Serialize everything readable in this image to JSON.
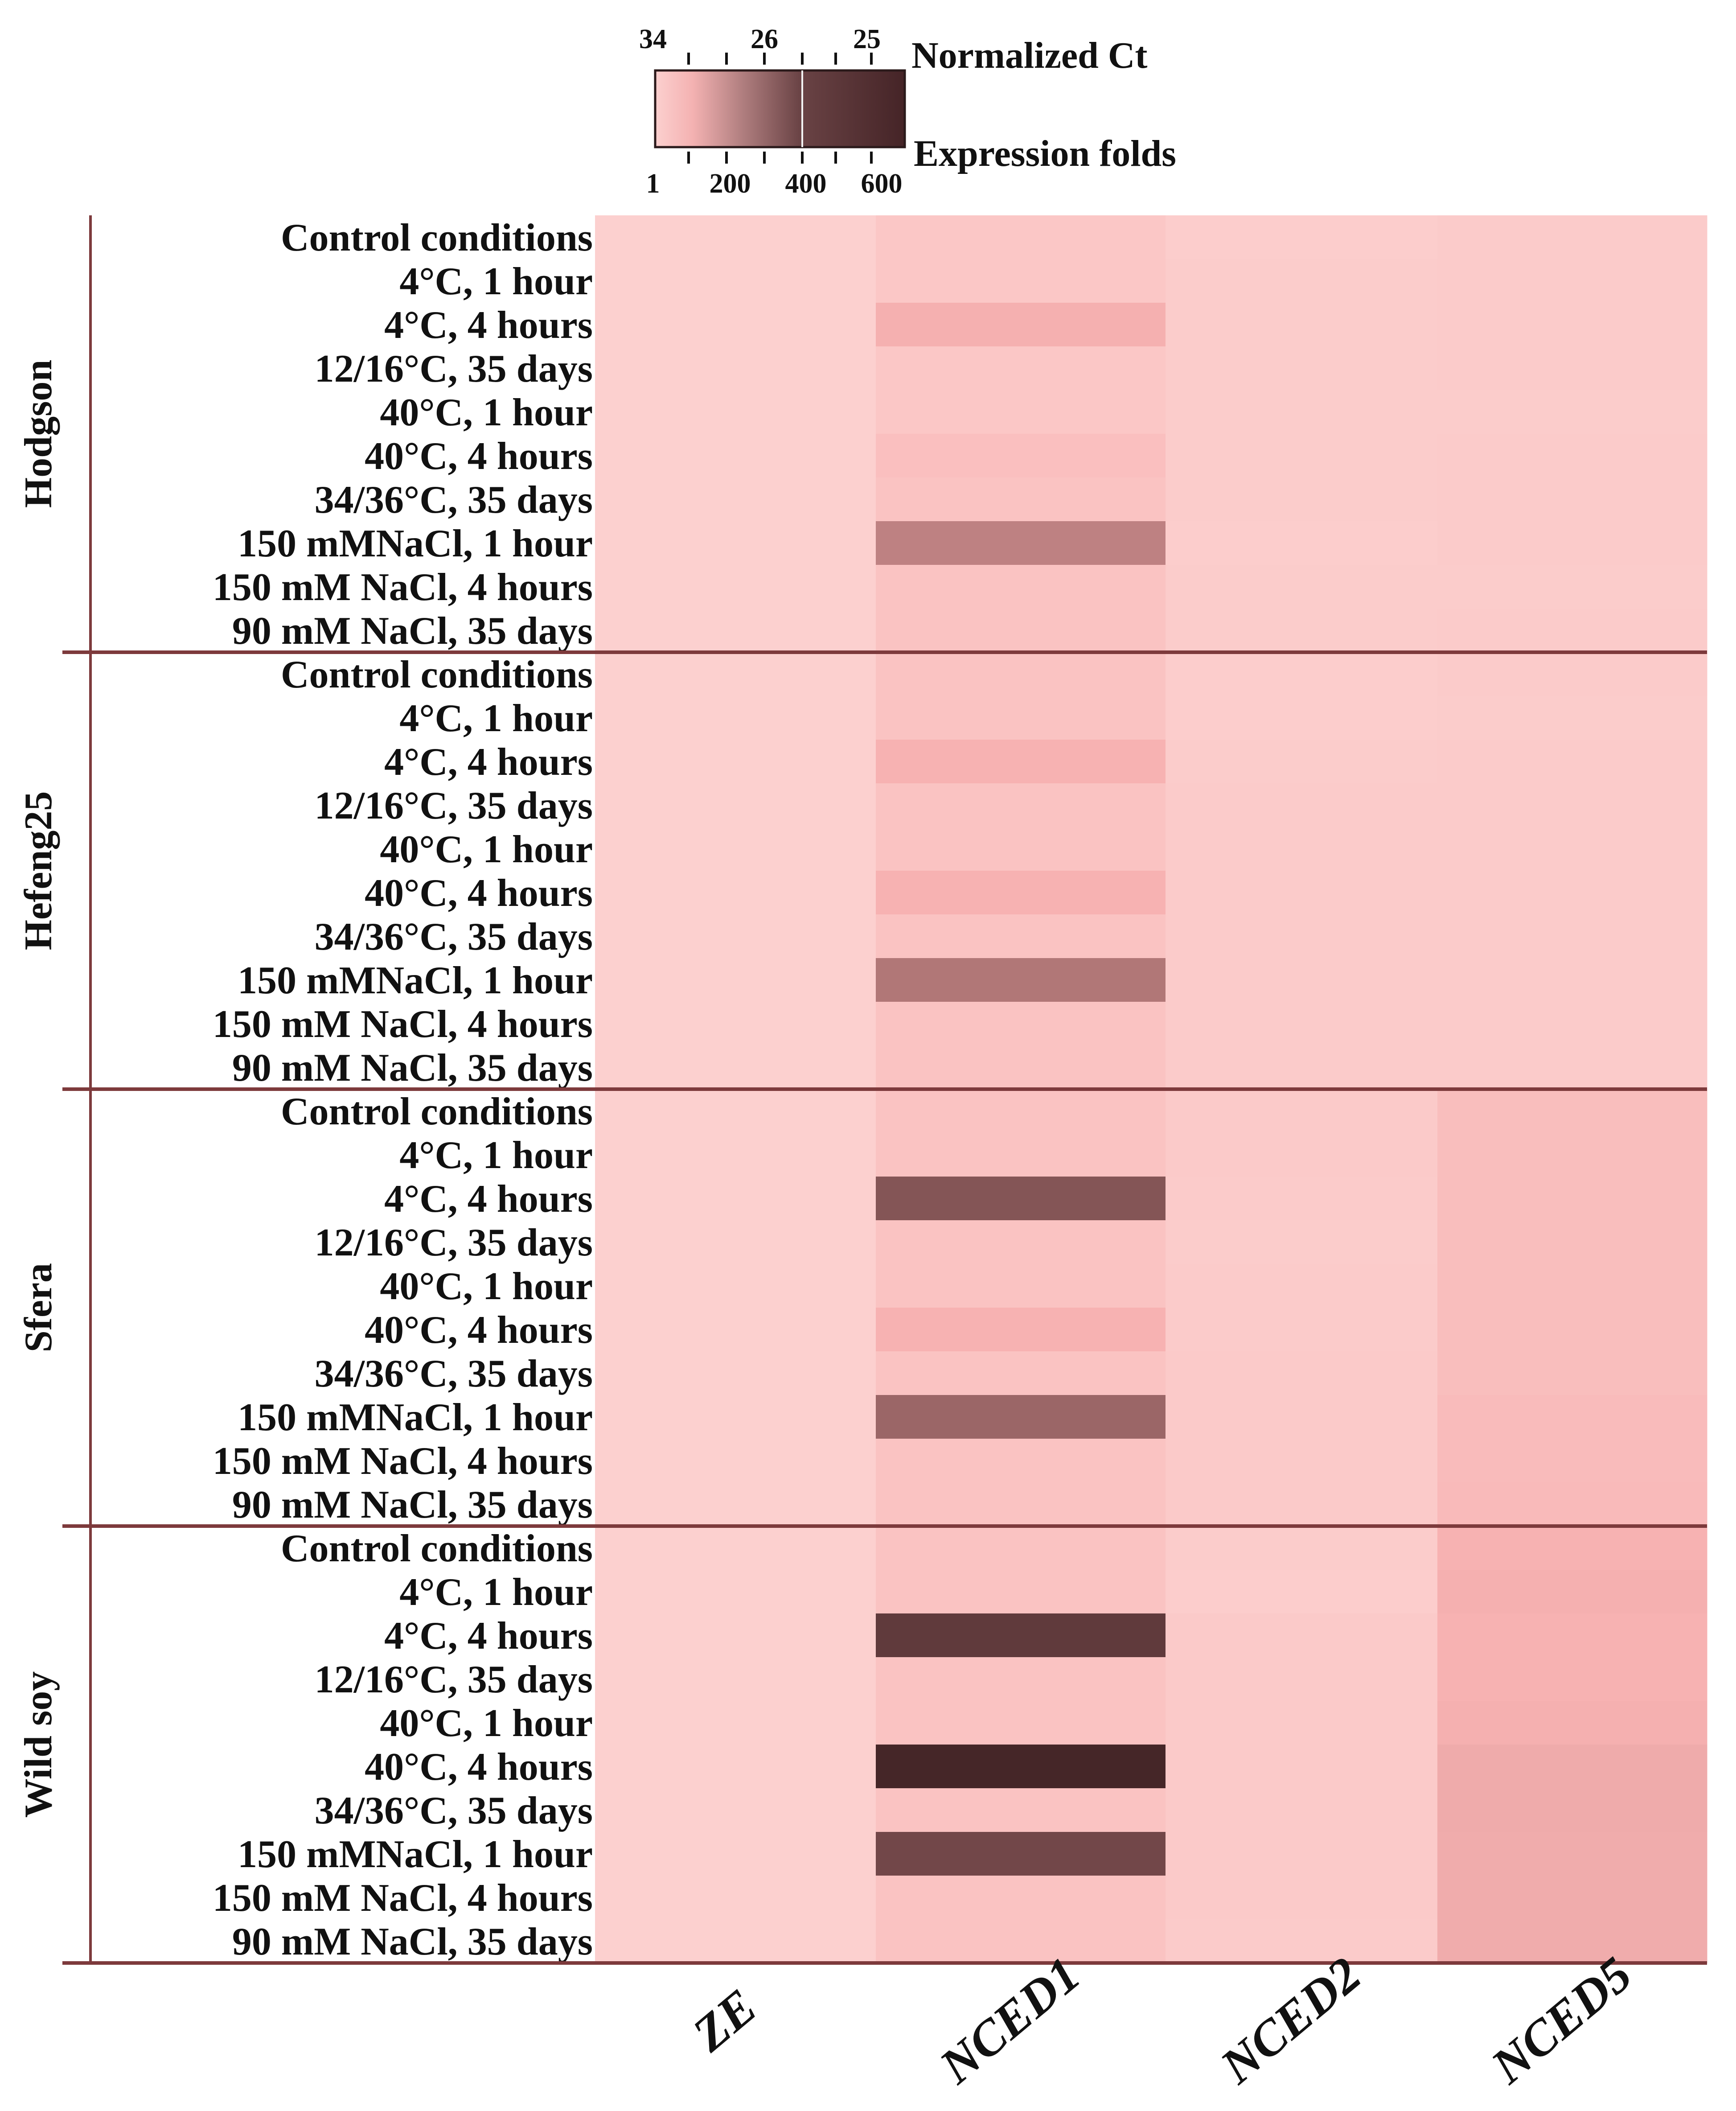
{
  "chart_data": {
    "type": "heatmap",
    "title": "",
    "columns": [
      "ZE",
      "NCED1",
      "NCED2",
      "NCED5"
    ],
    "rows": [
      "Control conditions",
      "4°C, 1 hour",
      "4°C, 4 hours",
      "12/16°C, 35 days",
      "40°C, 1 hour",
      "40°C, 4 hours",
      "34/36°C, 35 days",
      "150 mMNaCl, 1 hour",
      "150 mM NaCl, 4 hours",
      "90 mM NaCl, 35 days"
    ],
    "groups": [
      {
        "name": "Hodgson",
        "values": [
          [
            1,
            25,
            8,
            12
          ],
          [
            1,
            25,
            10,
            12
          ],
          [
            1,
            120,
            10,
            12
          ],
          [
            1,
            25,
            10,
            12
          ],
          [
            1,
            25,
            10,
            10
          ],
          [
            1,
            55,
            10,
            12
          ],
          [
            1,
            40,
            10,
            12
          ],
          [
            1,
            310,
            8,
            12
          ],
          [
            1,
            40,
            10,
            10
          ],
          [
            1,
            40,
            10,
            12
          ]
        ]
      },
      {
        "name": "Hefeng25",
        "values": [
          [
            1,
            40,
            8,
            12
          ],
          [
            1,
            40,
            8,
            10
          ],
          [
            1,
            110,
            10,
            12
          ],
          [
            1,
            40,
            12,
            12
          ],
          [
            1,
            40,
            12,
            12
          ],
          [
            1,
            110,
            12,
            12
          ],
          [
            1,
            40,
            12,
            12
          ],
          [
            1,
            340,
            12,
            12
          ],
          [
            1,
            40,
            12,
            12
          ],
          [
            1,
            40,
            12,
            12
          ]
        ]
      },
      {
        "name": "Sfera",
        "values": [
          [
            1,
            40,
            15,
            60
          ],
          [
            1,
            40,
            15,
            60
          ],
          [
            1,
            440,
            12,
            60
          ],
          [
            1,
            40,
            10,
            60
          ],
          [
            1,
            40,
            12,
            60
          ],
          [
            1,
            110,
            12,
            60
          ],
          [
            1,
            40,
            15,
            60
          ],
          [
            1,
            390,
            15,
            70
          ],
          [
            1,
            40,
            15,
            70
          ],
          [
            1,
            40,
            15,
            75
          ]
        ]
      },
      {
        "name": "Wild soy",
        "values": [
          [
            1,
            40,
            10,
            110
          ],
          [
            1,
            40,
            8,
            120
          ],
          [
            1,
            520,
            15,
            110
          ],
          [
            1,
            40,
            15,
            110
          ],
          [
            1,
            40,
            15,
            120
          ],
          [
            1,
            580,
            15,
            145
          ],
          [
            1,
            40,
            15,
            145
          ],
          [
            1,
            480,
            15,
            140
          ],
          [
            1,
            40,
            15,
            140
          ],
          [
            1,
            40,
            12,
            140
          ]
        ]
      }
    ],
    "color_scale": {
      "min": 1,
      "max": 600,
      "colors": [
        "#fcd0cf",
        "#f8b3b3",
        "#d99696",
        "#8e5c5d",
        "#3c2022"
      ]
    },
    "legend": {
      "top_label": "Normalized Ct",
      "bottom_label": "Expression folds",
      "top_ticks": [
        "34",
        "26",
        "25"
      ],
      "bottom_ticks": [
        "1",
        "200",
        "400",
        "600"
      ]
    }
  }
}
